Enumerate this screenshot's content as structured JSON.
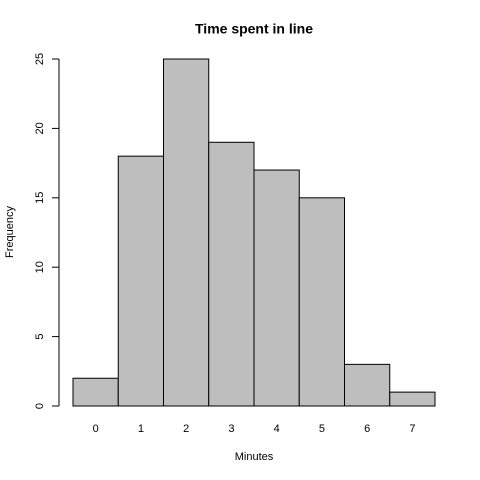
{
  "chart_data": {
    "type": "bar",
    "title": "Time spent in line",
    "x_label": "Minutes",
    "y_label": "Frequency",
    "categories": [
      "0",
      "1",
      "2",
      "3",
      "4",
      "5",
      "6",
      "7"
    ],
    "values": [
      2,
      18,
      25,
      19,
      17,
      15,
      3,
      1
    ],
    "color": "#bebebe",
    "ylim": [
      0,
      25
    ],
    "yticks": [
      0,
      5,
      10,
      15,
      20,
      25
    ],
    "grid": false
  }
}
